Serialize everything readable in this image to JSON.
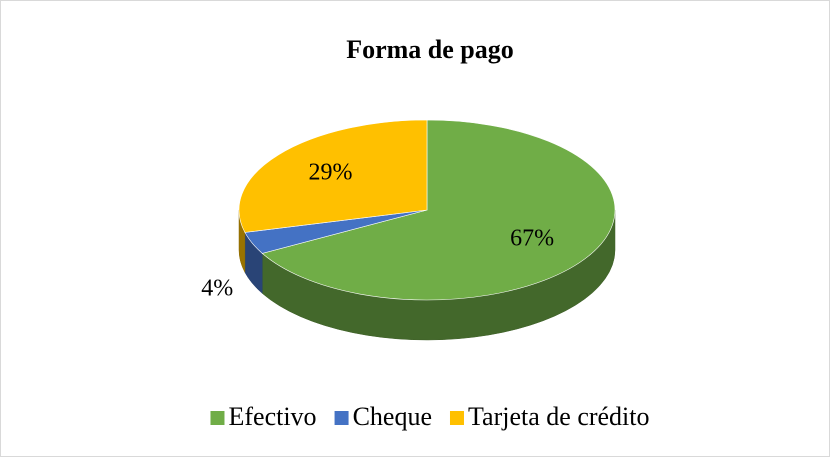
{
  "chart_data": {
    "type": "pie3d",
    "title": "Forma de pago",
    "categories": [
      "Efectivo",
      "Cheque",
      "Tarjeta de crédito"
    ],
    "values": [
      67,
      4,
      29
    ],
    "value_labels": [
      "67%",
      "4%",
      "29%"
    ],
    "colors": [
      "#70ad47",
      "#4472c4",
      "#ffc000"
    ],
    "legend": "bottom"
  }
}
